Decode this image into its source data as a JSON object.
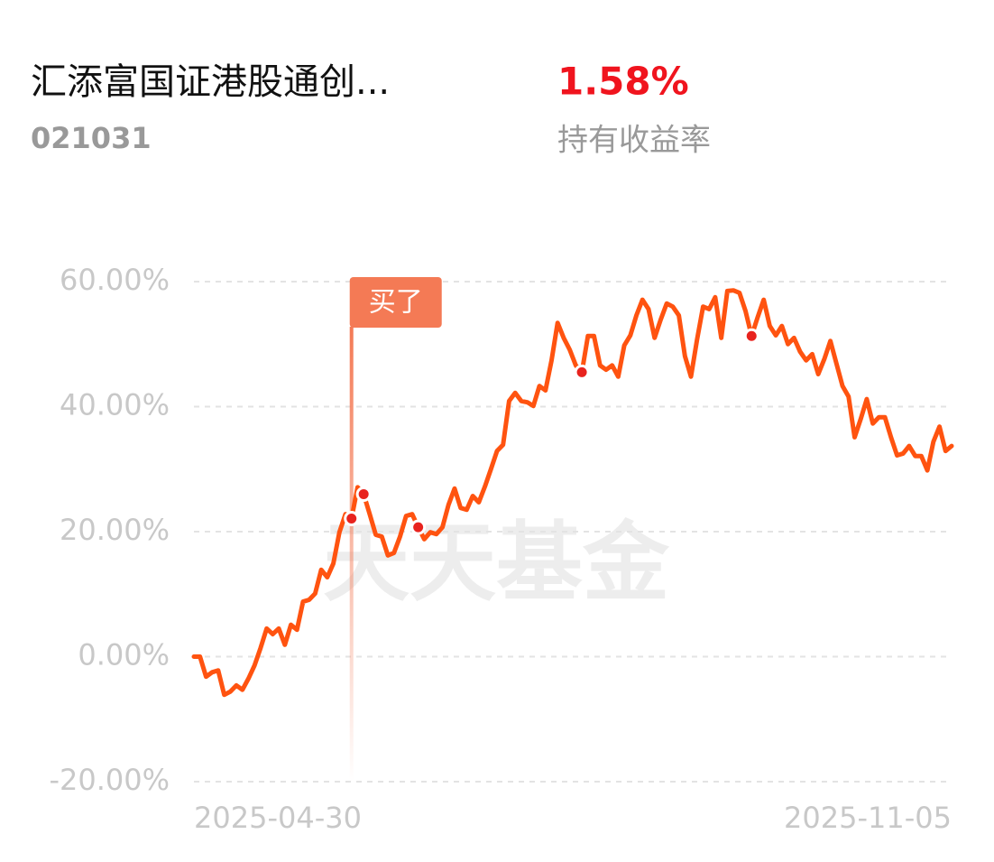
{
  "header": {
    "fund_name": "汇添富国证港股通创...",
    "fund_code": "021031",
    "return_value": "1.58%",
    "return_label": "持有收益率"
  },
  "chart_data": {
    "type": "line",
    "watermark": "天天基金",
    "categories": [
      "2025-04-30",
      null,
      null,
      null,
      null,
      null,
      null,
      null,
      null,
      null,
      null,
      null,
      null,
      null,
      null,
      null,
      null,
      null,
      null,
      null,
      null,
      null,
      null,
      null,
      null,
      null,
      null,
      null,
      null,
      null,
      null,
      null,
      null,
      null,
      null,
      null,
      null,
      null,
      null,
      null,
      null,
      null,
      null,
      null,
      null,
      null,
      null,
      null,
      null,
      null,
      null,
      null,
      null,
      null,
      null,
      null,
      null,
      null,
      null,
      null,
      null,
      null,
      null,
      null,
      null,
      null,
      null,
      null,
      null,
      null,
      null,
      null,
      null,
      null,
      null,
      null,
      null,
      null,
      null,
      null,
      null,
      null,
      null,
      null,
      null,
      null,
      null,
      null,
      null,
      null,
      null,
      null,
      null,
      null,
      null,
      null,
      null,
      null,
      null,
      null,
      null,
      null,
      null,
      null,
      null,
      null,
      null,
      null,
      null,
      null,
      null,
      null,
      null,
      null,
      null,
      null,
      null,
      null,
      null,
      null,
      null,
      null,
      null,
      null,
      null,
      "2025-11-05"
    ],
    "series": [
      {
        "color": "#ff5310",
        "values": [
          0,
          0,
          -3.2,
          -2.5,
          -2.2,
          -6.1,
          -5.6,
          -4.6,
          -5.3,
          -3.5,
          -1.4,
          1.4,
          4.5,
          3.6,
          4.5,
          1.9,
          5.1,
          4.3,
          8.8,
          9.1,
          10.1,
          13.9,
          12.7,
          14.9,
          19.9,
          22.8,
          22.1,
          27.1,
          26,
          22.8,
          19.5,
          19.2,
          16.2,
          16.6,
          19.2,
          22.5,
          22.8,
          20.7,
          18.8,
          19.9,
          19.6,
          20.7,
          24.3,
          26.9,
          23.8,
          23.5,
          25.7,
          24.7,
          27.2,
          30,
          32.9,
          33.9,
          40.9,
          42.2,
          40.9,
          40.7,
          40.1,
          43.3,
          42.6,
          47.4,
          53.4,
          51,
          49.1,
          46.6,
          45.5,
          51.3,
          51.3,
          46.6,
          45.9,
          46.6,
          44.8,
          49.8,
          51.4,
          54.6,
          57.1,
          55.6,
          51,
          53.9,
          56.5,
          56,
          54.6,
          48.1,
          44.8,
          50.7,
          56,
          55.6,
          57.5,
          51,
          58.5,
          58.6,
          58.2,
          55.3,
          51.3,
          54.3,
          57.1,
          52.9,
          51.4,
          52.9,
          50,
          51,
          48.8,
          47.4,
          48.4,
          45.2,
          47.6,
          50.5,
          46.9,
          43.3,
          41.6,
          35.1,
          38,
          41.2,
          37.3,
          38.3,
          38.3,
          35.1,
          32.2,
          32.5,
          33.7,
          32.1,
          32.1,
          29.8,
          34.4,
          36.8,
          32.9,
          33.7
        ]
      }
    ],
    "markers": [
      26,
      28,
      37,
      64,
      92
    ],
    "annotation": {
      "text": "买了",
      "index": 26,
      "color": "#f47a55"
    },
    "ylim": [
      -20,
      60
    ],
    "yticks": [
      {
        "value": -20,
        "label": "-20.00%"
      },
      {
        "value": 0,
        "label": "0.00%"
      },
      {
        "value": 20,
        "label": "20.00%"
      },
      {
        "value": 40,
        "label": "40.00%"
      },
      {
        "value": 60,
        "label": "60.00%"
      }
    ],
    "grid": true
  }
}
